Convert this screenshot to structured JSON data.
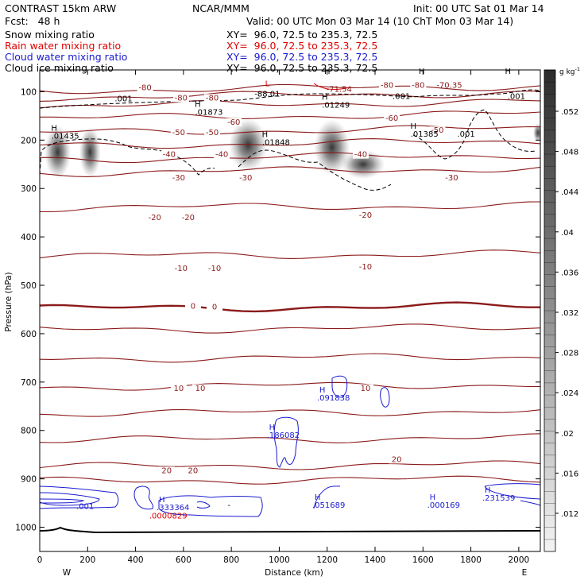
{
  "header": {
    "model": "CONTRAST 15km ARW",
    "center": "NCAR/MMM",
    "init": "Init: 00 UTC Sat 01 Mar 14",
    "fcst": "Fcst:   48 h",
    "valid": "Valid: 00 UTC Mon 03 Mar 14 (10 ChT Mon 03 Mar 14)"
  },
  "fields": [
    {
      "name": "Snow mixing ratio",
      "xy": "XY=  96.0, 72.5 to 235.3, 72.5",
      "color": "#000000"
    },
    {
      "name": "Rain water mixing ratio",
      "xy": "XY=  96.0, 72.5 to 235.3, 72.5",
      "color": "#e00000"
    },
    {
      "name": "Cloud water mixing ratio",
      "xy": "XY=  96.0, 72.5 to 235.3, 72.5",
      "color": "#1a1ad0"
    },
    {
      "name": "Cloud ice mixing ratio",
      "xy": "XY=  96.0, 72.5 to 235.3, 72.5",
      "color": "#000000"
    }
  ],
  "colors": {
    "temperature": "#8b1a1a",
    "cloud_water": "#1a1ad0",
    "rain": "#e00000",
    "ice": "#000000"
  },
  "chart_data": {
    "type": "contour-cross-section",
    "xlabel": "Distance (km)",
    "ylabel": "Pressure (hPa)",
    "xlim": [
      0,
      2090
    ],
    "ylim": [
      1050,
      55
    ],
    "x_ticks": [
      0,
      200,
      400,
      600,
      800,
      1000,
      1200,
      1400,
      1600,
      1800,
      2000
    ],
    "y_ticks": [
      100,
      200,
      300,
      400,
      500,
      600,
      700,
      800,
      900,
      1000
    ],
    "x_ends": [
      "W",
      "E"
    ],
    "colorbar": {
      "unit": "g kg",
      "unit_sup": "-1",
      "ticks": [
        ".052",
        ".048",
        ".044",
        ".04",
        ".036",
        ".032",
        ".028",
        ".024",
        ".02",
        ".016",
        ".012"
      ]
    },
    "isotherms": [
      {
        "temp": -80,
        "p": 98
      },
      {
        "temp": -80,
        "p": 112
      },
      {
        "temp": -70,
        "p": 130
      },
      {
        "temp": -60,
        "p": 155
      },
      {
        "temp": -50,
        "p": 185
      },
      {
        "temp": -40,
        "p": 212
      },
      {
        "temp": -30,
        "p": 240
      },
      {
        "temp": -30,
        "p": 268
      },
      {
        "temp": -20,
        "p": 340
      },
      {
        "temp": -10,
        "p": 440
      },
      {
        "temp": 0,
        "p": 548
      },
      {
        "temp": 0,
        "p": 592
      },
      {
        "temp": 10,
        "p": 652
      },
      {
        "temp": 10,
        "p": 710
      },
      {
        "temp": 10,
        "p": 765
      },
      {
        "temp": 20,
        "p": 820
      },
      {
        "temp": 20,
        "p": 875
      },
      {
        "temp": 20,
        "p": 905
      }
    ],
    "isotherm_labels": [
      {
        "text": "-80",
        "x": 440,
        "p": 97
      },
      {
        "text": "-80",
        "x": 1450,
        "p": 92
      },
      {
        "text": "-80",
        "x": 1580,
        "p": 92
      },
      {
        "text": "-80",
        "x": 590,
        "p": 118
      },
      {
        "text": "-80",
        "x": 720,
        "p": 118
      },
      {
        "text": "-60",
        "x": 810,
        "p": 168
      },
      {
        "text": "-60",
        "x": 1470,
        "p": 160
      },
      {
        "text": "-50",
        "x": 580,
        "p": 190
      },
      {
        "text": "-50",
        "x": 720,
        "p": 190
      },
      {
        "text": "-50",
        "x": 1660,
        "p": 185
      },
      {
        "text": "-40",
        "x": 540,
        "p": 235
      },
      {
        "text": "-40",
        "x": 760,
        "p": 235
      },
      {
        "text": "-40",
        "x": 1340,
        "p": 235
      },
      {
        "text": "-30",
        "x": 580,
        "p": 283
      },
      {
        "text": "-30",
        "x": 860,
        "p": 283
      },
      {
        "text": "-30",
        "x": 1720,
        "p": 283
      },
      {
        "text": "-20",
        "x": 480,
        "p": 365
      },
      {
        "text": "-20",
        "x": 620,
        "p": 365
      },
      {
        "text": "-20",
        "x": 1360,
        "p": 360
      },
      {
        "text": "-10",
        "x": 590,
        "p": 470
      },
      {
        "text": "-10",
        "x": 730,
        "p": 470
      },
      {
        "text": "-10",
        "x": 1360,
        "p": 467
      },
      {
        "text": "0",
        "x": 640,
        "p": 548
      },
      {
        "text": "0",
        "x": 730,
        "p": 550
      },
      {
        "text": "10",
        "x": 580,
        "p": 718
      },
      {
        "text": "10",
        "x": 670,
        "p": 718
      },
      {
        "text": "10",
        "x": 1360,
        "p": 718
      },
      {
        "text": "20",
        "x": 530,
        "p": 888
      },
      {
        "text": "20",
        "x": 640,
        "p": 888
      },
      {
        "text": "20",
        "x": 1490,
        "p": 865
      }
    ],
    "extrema": [
      {
        "mark": "H",
        "value": ".01435",
        "x": 60,
        "p": 197,
        "color": "#000000"
      },
      {
        "mark": "H",
        "value": ".01873",
        "x": 660,
        "p": 148,
        "color": "#000000"
      },
      {
        "mark": "H",
        "value": ".01848",
        "x": 940,
        "p": 210,
        "color": "#000000"
      },
      {
        "mark": "H",
        "value": ".01249",
        "x": 1190,
        "p": 133,
        "color": "#000000"
      },
      {
        "mark": "H",
        "value": ".01385",
        "x": 1560,
        "p": 193,
        "color": "#000000"
      },
      {
        "mark": "H",
        "value": "",
        "x": 1200,
        "p": 80,
        "color": "#000000"
      },
      {
        "mark": "H",
        "value": "",
        "x": 1595,
        "p": 80,
        "color": "#000000"
      },
      {
        "mark": "H",
        "value": "",
        "x": 1955,
        "p": 80,
        "color": "#000000"
      },
      {
        "mark": "L",
        "value": "",
        "x": 950,
        "p": 105,
        "color": "#e00000"
      },
      {
        "mark": "H",
        "value": ".091838",
        "x": 1180,
        "p": 738,
        "color": "#1a1ad0"
      },
      {
        "mark": "H",
        "value": ".186082",
        "x": 970,
        "p": 815,
        "color": "#1a1ad0"
      },
      {
        "mark": "H",
        "value": ".051689",
        "x": 1160,
        "p": 960,
        "color": "#1a1ad0"
      },
      {
        "mark": "H",
        "value": ".333364",
        "x": 510,
        "p": 965,
        "color": "#1a1ad0"
      },
      {
        "mark": "H",
        "value": ".000169",
        "x": 1640,
        "p": 960,
        "color": "#1a1ad0"
      },
      {
        "mark": "H",
        "value": ".231539",
        "x": 1870,
        "p": 945,
        "color": "#1a1ad0"
      },
      {
        "mark": "",
        "value": ".0000829",
        "x": 490,
        "p": 982,
        "color": "#e00000"
      }
    ],
    "contour_values": [
      {
        "value": "-71.54",
        "x": 1250,
        "p": 100,
        "color": "#8b1a1a"
      },
      {
        "value": "-70.35",
        "x": 1710,
        "p": 92,
        "color": "#8b1a1a"
      },
      {
        "value": "-88.01",
        "x": 950,
        "p": 110,
        "color": "#000000"
      },
      {
        "value": ".001",
        "x": 350,
        "p": 120,
        "color": "#000000"
      },
      {
        "value": ".001",
        "x": 1510,
        "p": 115,
        "color": "#000000"
      },
      {
        "value": ".001",
        "x": 1990,
        "p": 115,
        "color": "#000000"
      },
      {
        "value": ".001",
        "x": 1780,
        "p": 193,
        "color": "#000000"
      },
      {
        "value": ".001",
        "x": 190,
        "p": 962,
        "color": "#1a1ad0"
      },
      {
        "value": "-",
        "x": 790,
        "p": 960,
        "color": "#000000"
      }
    ],
    "snow_maxima": [
      {
        "x": 75,
        "p": 225,
        "w": 55,
        "h": 110
      },
      {
        "x": 210,
        "p": 225,
        "w": 45,
        "h": 105
      },
      {
        "x": 870,
        "p": 210,
        "w": 80,
        "h": 110
      },
      {
        "x": 1220,
        "p": 215,
        "w": 75,
        "h": 115
      },
      {
        "x": 1350,
        "p": 250,
        "w": 90,
        "h": 60
      },
      {
        "x": 2080,
        "p": 185,
        "w": 20,
        "h": 40
      }
    ]
  }
}
